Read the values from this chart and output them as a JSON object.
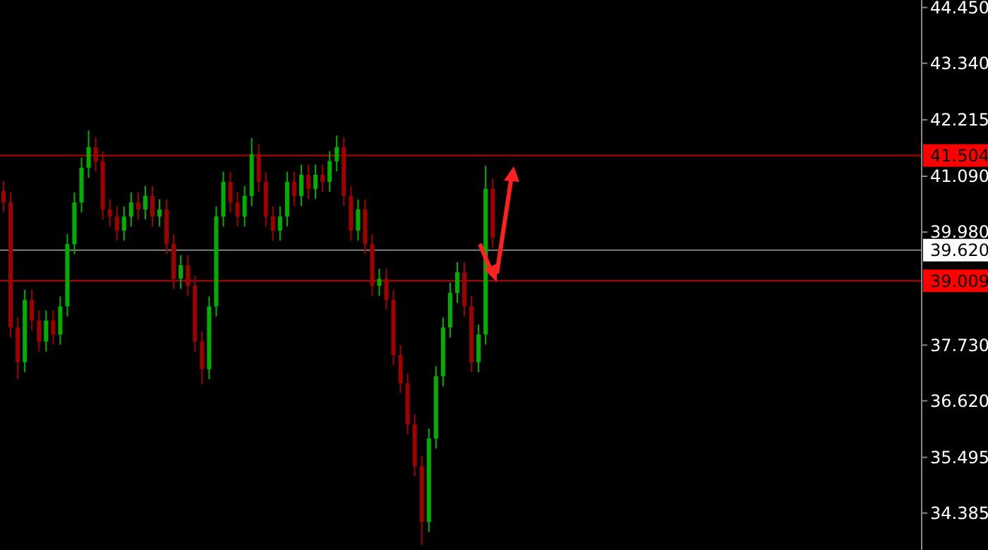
{
  "chart_data": {
    "type": "candlestick",
    "categories": [
      null,
      null,
      null,
      null,
      null,
      null,
      null,
      null,
      null,
      null,
      null,
      null,
      null,
      null,
      null,
      null,
      null,
      null,
      null,
      null,
      null,
      null,
      null,
      null,
      null,
      null,
      null,
      null,
      null,
      null,
      null,
      null,
      null,
      null,
      null,
      null,
      null,
      null,
      null,
      null,
      null,
      null,
      null,
      null,
      null,
      null,
      null,
      null,
      null,
      null,
      null,
      null,
      null,
      null,
      null,
      null,
      null,
      null,
      null,
      null,
      null,
      null,
      null,
      null,
      null,
      null,
      null,
      null,
      null,
      null,
      null,
      null,
      null,
      null,
      null,
      null,
      null,
      null,
      null,
      null,
      null,
      null,
      null,
      null,
      null,
      null,
      null,
      null,
      null,
      null,
      null,
      null,
      null,
      null,
      null,
      null,
      null,
      null,
      null,
      null,
      null,
      null,
      null,
      null,
      null,
      null,
      null,
      null,
      null,
      null,
      null,
      null,
      null,
      null,
      null,
      null,
      null,
      null,
      null,
      null,
      null,
      null,
      null,
      null,
      null,
      null,
      null,
      null,
      null,
      null
    ],
    "ohlc": [
      [
        40.8,
        41.0,
        40.37,
        40.57
      ],
      [
        40.57,
        40.77,
        37.88,
        38.08
      ],
      [
        38.08,
        38.28,
        37.05,
        37.39
      ],
      [
        37.39,
        38.83,
        37.19,
        38.63
      ],
      [
        38.63,
        38.83,
        38.02,
        38.22
      ],
      [
        38.22,
        38.42,
        37.6,
        37.8
      ],
      [
        37.8,
        38.42,
        37.6,
        38.22
      ],
      [
        38.22,
        38.42,
        37.74,
        37.94
      ],
      [
        37.94,
        38.7,
        37.74,
        38.5
      ],
      [
        38.5,
        39.94,
        38.3,
        39.74
      ],
      [
        39.74,
        40.77,
        39.54,
        40.57
      ],
      [
        40.57,
        41.46,
        40.37,
        41.26
      ],
      [
        41.26,
        42.0,
        41.06,
        41.67
      ],
      [
        41.67,
        41.87,
        41.19,
        41.39
      ],
      [
        41.39,
        41.59,
        40.23,
        40.43
      ],
      [
        40.43,
        40.63,
        40.09,
        40.29
      ],
      [
        40.29,
        40.49,
        39.81,
        40.01
      ],
      [
        40.01,
        40.49,
        39.81,
        40.29
      ],
      [
        40.29,
        40.77,
        40.09,
        40.57
      ],
      [
        40.57,
        40.77,
        40.23,
        40.43
      ],
      [
        40.43,
        40.9,
        40.23,
        40.7
      ],
      [
        40.7,
        40.9,
        40.09,
        40.29
      ],
      [
        40.29,
        40.63,
        40.09,
        40.43
      ],
      [
        40.43,
        40.63,
        39.54,
        39.74
      ],
      [
        39.74,
        39.94,
        38.85,
        39.05
      ],
      [
        39.05,
        39.52,
        38.85,
        39.32
      ],
      [
        39.32,
        39.52,
        38.71,
        38.91
      ],
      [
        38.91,
        39.11,
        37.6,
        37.8
      ],
      [
        37.8,
        38.0,
        36.95,
        37.25
      ],
      [
        37.25,
        38.7,
        37.05,
        38.5
      ],
      [
        38.5,
        40.49,
        38.3,
        40.29
      ],
      [
        40.29,
        41.18,
        40.09,
        40.98
      ],
      [
        40.98,
        41.18,
        40.37,
        40.57
      ],
      [
        40.57,
        40.77,
        40.09,
        40.29
      ],
      [
        40.29,
        40.9,
        40.09,
        40.7
      ],
      [
        40.7,
        41.85,
        40.5,
        41.53
      ],
      [
        41.53,
        41.73,
        40.78,
        40.98
      ],
      [
        40.98,
        41.18,
        40.09,
        40.29
      ],
      [
        40.29,
        40.49,
        39.81,
        40.01
      ],
      [
        40.01,
        40.49,
        39.81,
        40.29
      ],
      [
        40.29,
        41.18,
        40.09,
        40.98
      ],
      [
        40.98,
        41.18,
        40.5,
        40.7
      ],
      [
        40.7,
        41.32,
        40.5,
        41.12
      ],
      [
        41.12,
        41.32,
        40.64,
        40.84
      ],
      [
        40.84,
        41.32,
        40.64,
        41.12
      ],
      [
        41.12,
        41.32,
        40.78,
        40.98
      ],
      [
        40.98,
        41.59,
        40.78,
        41.39
      ],
      [
        41.39,
        41.9,
        41.19,
        41.67
      ],
      [
        41.67,
        41.87,
        40.5,
        40.7
      ],
      [
        40.7,
        40.9,
        39.81,
        40.01
      ],
      [
        40.01,
        40.63,
        39.81,
        40.43
      ],
      [
        40.43,
        40.63,
        39.54,
        39.74
      ],
      [
        39.74,
        39.94,
        38.71,
        38.91
      ],
      [
        38.91,
        39.25,
        38.71,
        39.05
      ],
      [
        39.05,
        39.25,
        38.43,
        38.63
      ],
      [
        38.63,
        38.83,
        37.33,
        37.53
      ],
      [
        37.53,
        37.73,
        36.77,
        36.97
      ],
      [
        36.97,
        37.17,
        35.95,
        36.15
      ],
      [
        36.15,
        36.35,
        35.12,
        35.32
      ],
      [
        35.32,
        35.52,
        33.75,
        34.21
      ],
      [
        34.21,
        36.07,
        34.01,
        35.87
      ],
      [
        35.87,
        37.31,
        35.67,
        37.11
      ],
      [
        37.11,
        38.28,
        36.91,
        38.08
      ],
      [
        38.08,
        38.97,
        37.88,
        38.77
      ],
      [
        38.77,
        39.38,
        38.57,
        39.18
      ],
      [
        39.18,
        39.38,
        38.3,
        38.5
      ],
      [
        38.5,
        38.7,
        37.19,
        37.39
      ],
      [
        37.39,
        38.14,
        37.19,
        37.94
      ],
      [
        37.94,
        41.3,
        37.74,
        40.84
      ],
      [
        40.84,
        41.04,
        39.67,
        39.87
      ],
      null,
      null,
      null,
      null,
      null,
      null,
      null,
      null,
      null,
      null,
      null,
      null,
      null,
      null,
      null,
      null,
      null,
      null,
      null,
      null,
      null,
      null,
      null,
      null,
      null,
      null,
      null,
      null,
      null,
      null,
      null,
      null,
      null,
      null,
      null,
      null,
      null,
      null,
      null,
      null,
      null,
      null,
      null,
      null,
      null,
      null,
      null,
      null,
      null,
      null,
      null,
      null,
      null,
      null,
      null,
      null,
      null,
      null,
      null,
      null
    ],
    "colors": [
      "#a00000",
      "#a00000",
      "#a00000",
      "#00b000",
      "#a00000",
      "#a00000",
      "#00b000",
      "#a00000",
      "#00b000",
      "#00b000",
      "#00b000",
      "#00b000",
      "#00b000",
      "#a00000",
      "#a00000",
      "#a00000",
      "#a00000",
      "#00b000",
      "#00b000",
      "#a00000",
      "#00b000",
      "#a00000",
      "#00b000",
      "#a00000",
      "#a00000",
      "#00b000",
      "#a00000",
      "#a00000",
      "#a00000",
      "#00b000",
      "#00b000",
      "#00b000",
      "#a00000",
      "#a00000",
      "#00b000",
      "#00b000",
      "#a00000",
      "#a00000",
      "#a00000",
      "#00b000",
      "#00b000",
      "#a00000",
      "#00b000",
      "#a00000",
      "#00b000",
      "#a00000",
      "#00b000",
      "#00b000",
      "#a00000",
      "#a00000",
      "#00b000",
      "#a00000",
      "#a00000",
      "#00b000",
      "#a00000",
      "#a00000",
      "#a00000",
      "#a00000",
      "#a00000",
      "#a00000",
      "#00b000",
      "#00b000",
      "#00b000",
      "#00b000",
      "#00b000",
      "#a00000",
      "#a00000",
      "#00b000",
      "#00b000",
      "#a00000",
      null,
      null,
      null,
      null,
      null,
      null,
      null,
      null,
      null,
      null,
      null,
      null,
      null,
      null,
      null,
      null,
      null,
      null,
      null,
      null,
      null,
      null,
      null,
      null,
      null,
      null,
      null,
      null,
      null,
      null,
      null,
      null,
      null,
      null,
      null,
      null,
      null,
      null,
      null,
      null,
      null,
      null,
      null,
      null,
      null,
      null,
      null,
      null,
      null,
      null,
      null,
      null,
      null,
      null,
      null,
      null,
      null,
      null,
      null,
      null
    ],
    "ylim": [
      33.65,
      44.6
    ],
    "yticks": [
      {
        "value": 44.45,
        "label": "44.450"
      },
      {
        "value": 43.34,
        "label": "43.340"
      },
      42.215,
      {
        "value": 41.09,
        "label": "41.090"
      },
      {
        "value": 39.98,
        "label": "39.980"
      },
      {
        "value": 37.73,
        "label": "37.730"
      },
      {
        "value": 36.62,
        "label": "36.620"
      },
      35.495,
      34.385
    ],
    "tick_labels": "y",
    "ref_lines": [
      {
        "axis": "y",
        "value": 41.504,
        "label": "41.504",
        "color": "#c00000"
      },
      {
        "axis": "y",
        "value": 39.62,
        "label": "39.620",
        "color": "#808080"
      },
      {
        "axis": "y",
        "value": 39.009,
        "label": "39.009",
        "color": "#c00000"
      }
    ]
  }
}
